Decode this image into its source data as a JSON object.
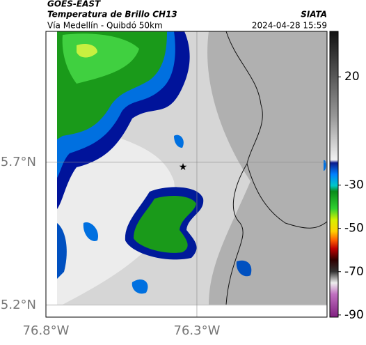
{
  "header": {
    "source": "GOES-EAST",
    "product": "Temperatura de Brillo CH13",
    "route": "Vía Medellín - Quibdó 50km",
    "agency": "SIATA",
    "timestamp": "2024-04-28 15:59"
  },
  "map": {
    "xlim": [
      -76.8,
      -75.869
    ],
    "ylim": [
      5.158,
      6.158
    ],
    "xticks": [
      {
        "value": -76.8,
        "label": "76.8°W"
      },
      {
        "value": -76.3,
        "label": "76.3°W"
      }
    ],
    "yticks": [
      {
        "value": 5.2,
        "label": "5.2°N"
      },
      {
        "value": 5.7,
        "label": "5.7°N"
      }
    ],
    "grid": true
  },
  "colorbar": {
    "clim": [
      -91,
      41
    ],
    "ticks": [
      20,
      -30,
      -50,
      -70,
      -90
    ]
  }
}
